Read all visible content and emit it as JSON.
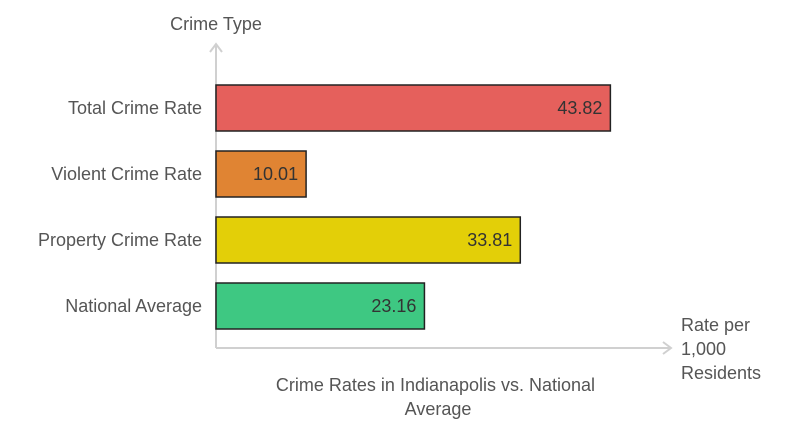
{
  "chart_data": {
    "type": "bar",
    "orientation": "horizontal",
    "title": "Crime Rates in Indianapolis vs. National Average",
    "xlabel": "Rate per 1,000 Residents",
    "ylabel": "Crime Type",
    "categories": [
      "Total Crime Rate",
      "Violent Crime Rate",
      "Property Crime Rate",
      "National Average"
    ],
    "values": [
      43.82,
      10.01,
      33.81,
      23.16
    ],
    "value_labels": [
      "43.82",
      "10.01",
      "33.81",
      "23.16"
    ],
    "colors": [
      "#e5605c",
      "#e08433",
      "#e3cf08",
      "#3ec882"
    ],
    "xlim": [
      0,
      50
    ],
    "grid": false,
    "legend": "none"
  }
}
